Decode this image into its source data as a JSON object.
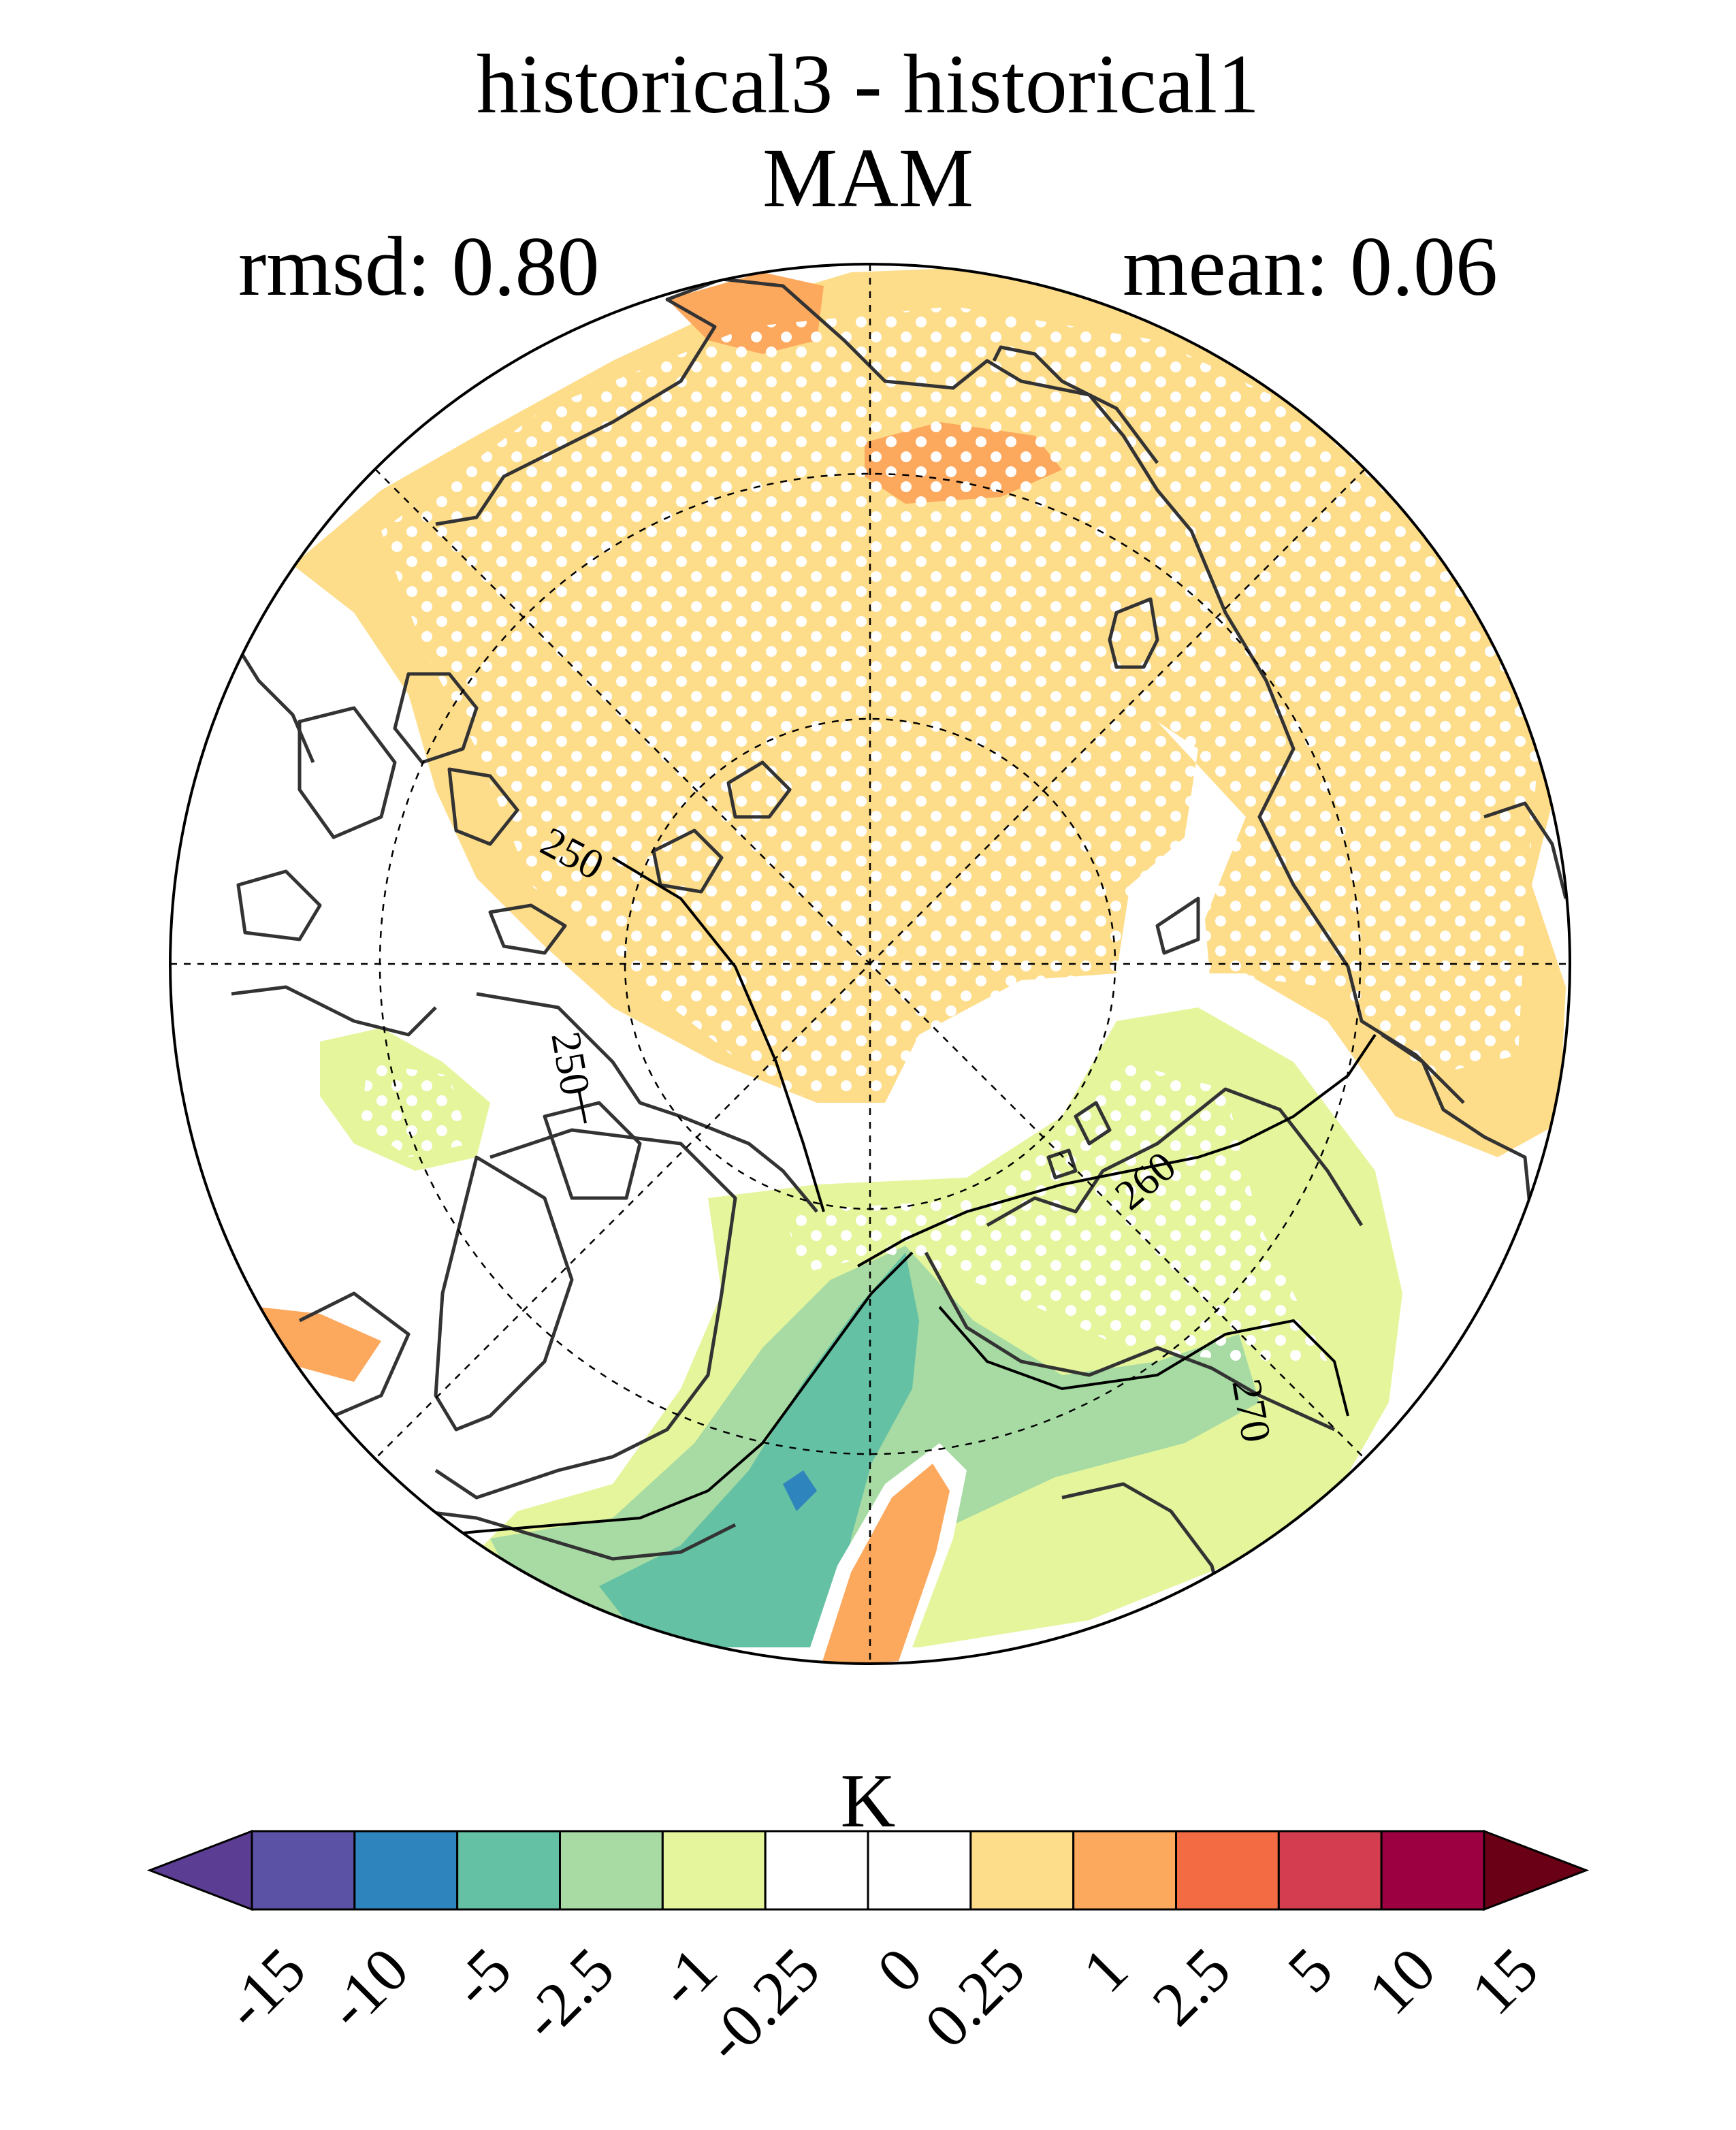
{
  "title": "historical3 - historical1",
  "season": "MAM",
  "stats": {
    "rmsd_label": "rmsd: 0.80",
    "mean_label": "mean: 0.06"
  },
  "contour_labels": [
    "250",
    "250",
    "260",
    "270"
  ],
  "colorbar": {
    "unit": "K",
    "ticks": [
      "-15",
      "-10",
      "-5",
      "-2.5",
      "-1",
      "-0.25",
      "0",
      "0.25",
      "1",
      "2.5",
      "5",
      "10",
      "15"
    ],
    "colors": [
      "#5b3d93",
      "#5c52a5",
      "#2e84bd",
      "#64c1a3",
      "#a7dba3",
      "#e5f59c",
      "#ffffff",
      "#ffffff",
      "#fedd8a",
      "#fca85d",
      "#f36b43",
      "#d43d4f",
      "#9d0041",
      "#6a0016"
    ]
  },
  "map_colors": {
    "warm_light": "#fedd8a",
    "warm_mid": "#fca85d",
    "cool_light": "#e5f59c",
    "cool_mid": "#a7dba3",
    "cool_dark": "#64c1a3",
    "cool_deep": "#2e84bd",
    "coast": "#333333"
  }
}
